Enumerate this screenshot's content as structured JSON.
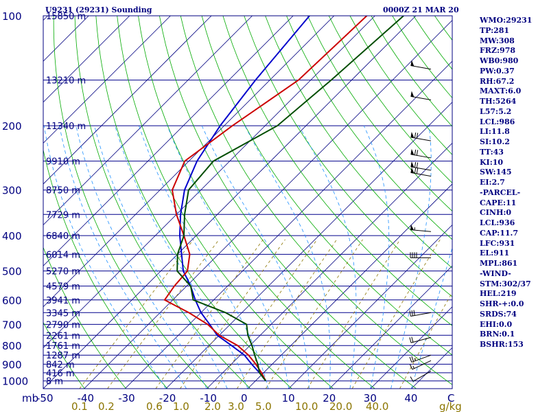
{
  "header": {
    "left": "U9231 (29231) Sounding",
    "right": "0000Z 21 MAR 20"
  },
  "indices": [
    "WMO:29231",
    "TP:281",
    "MW:308",
    "FRZ:978",
    "WB0:980",
    "PW:0.37",
    "RH:67.2",
    "MAXT:6.0",
    "TH:5264",
    "L57:5.2",
    "LCL:986",
    "LI:11.8",
    "SI:10.2",
    "TT:43",
    "KI:10",
    "SW:145",
    "EI:2.7",
    "-PARCEL-",
    "CAPE:11",
    "CINH:0",
    "LCL:936",
    "CAP:11.7",
    "LFC:931",
    "EL:911",
    "MPL:861",
    "-WIND-",
    "STM:302/37",
    "HEL:219",
    "SHR-+:0.0",
    "SRDS:74",
    "EHI:0.0",
    "BRN:0.1",
    "BSHR:153"
  ],
  "colors": {
    "frame": "#000080",
    "isobar": "#00008b",
    "isotherm": "#000080",
    "dry_adiabat": "#00aa00",
    "moist_adiabat": "#1e90ff",
    "mixing_ratio": "#8b7500",
    "temperature": "#cc0000",
    "dewpoint": "#004d00",
    "parcel": "#0000cc",
    "text": "#000080",
    "mixing_label": "#8b7500"
  },
  "chart_data": {
    "type": "line",
    "title": "U9231 (29231) Sounding",
    "xlabel": "C",
    "ylabel": "mb",
    "mixing_ratio_unit": "g/kg",
    "xlim": [
      -50,
      50
    ],
    "ylim": [
      1050,
      100
    ],
    "pressure_levels": [
      100,
      200,
      300,
      400,
      500,
      600,
      700,
      800,
      900,
      1000
    ],
    "temperature_ticks": [
      -50,
      -40,
      -30,
      -20,
      -10,
      0,
      10,
      20,
      30,
      40
    ],
    "mixing_ratio_labels": [
      "0.1",
      "0.2",
      "0.6",
      "1.0",
      "2.0",
      "3.0",
      "5.0",
      "10.0",
      "20.0",
      "40.0"
    ],
    "height_labels": [
      {
        "p": 100,
        "h": "15850 m"
      },
      {
        "p": 150,
        "h": "13210 m"
      },
      {
        "p": 200,
        "h": "11340 m"
      },
      {
        "p": 250,
        "h": "9910 m"
      },
      {
        "p": 300,
        "h": "8750 m"
      },
      {
        "p": 350,
        "h": "7729 m"
      },
      {
        "p": 400,
        "h": "6840 m"
      },
      {
        "p": 450,
        "h": "6014 m"
      },
      {
        "p": 500,
        "h": "5270 m"
      },
      {
        "p": 550,
        "h": "4579 m"
      },
      {
        "p": 600,
        "h": "3941 m"
      },
      {
        "p": 650,
        "h": "3345 m"
      },
      {
        "p": 700,
        "h": "2790 m"
      },
      {
        "p": 750,
        "h": "2261 m"
      },
      {
        "p": 800,
        "h": "1761 m"
      },
      {
        "p": 850,
        "h": "1287 m"
      },
      {
        "p": 900,
        "h": "842 m"
      },
      {
        "p": 950,
        "h": "416 m"
      },
      {
        "p": 1000,
        "h": "8 m"
      }
    ],
    "series": [
      {
        "values": [
          [
            1000,
            2.5
          ],
          [
            950,
            -1
          ],
          [
            900,
            -5
          ],
          [
            850,
            -9
          ],
          [
            800,
            -14.5
          ],
          [
            750,
            -20.5
          ],
          [
            700,
            -25
          ],
          [
            650,
            -30
          ],
          [
            600,
            -34.5
          ],
          [
            550,
            -39
          ],
          [
            500,
            -44.5
          ],
          [
            450,
            -49
          ],
          [
            400,
            -54
          ],
          [
            350,
            -59
          ],
          [
            300,
            -64
          ],
          [
            250,
            -68
          ],
          [
            200,
            -71
          ],
          [
            150,
            -73.5
          ],
          [
            100,
            -76
          ]
        ]
      },
      {
        "values": [
          [
            1000,
            2.5
          ],
          [
            950,
            -0.5
          ],
          [
            900,
            -4
          ],
          [
            850,
            -8
          ],
          [
            800,
            -13
          ],
          [
            750,
            -20
          ],
          [
            700,
            -25.5
          ],
          [
            650,
            -33
          ],
          [
            600,
            -42
          ],
          [
            550,
            -43
          ],
          [
            500,
            -43.5
          ],
          [
            450,
            -47
          ],
          [
            400,
            -53
          ],
          [
            350,
            -60
          ],
          [
            300,
            -67
          ],
          [
            250,
            -71
          ],
          [
            200,
            -68
          ],
          [
            150,
            -63
          ],
          [
            100,
            -62
          ]
        ]
      },
      {
        "values": [
          [
            1000,
            2.5
          ],
          [
            950,
            -1
          ],
          [
            900,
            -3.5
          ],
          [
            850,
            -6.5
          ],
          [
            800,
            -9.5
          ],
          [
            750,
            -13
          ],
          [
            700,
            -16
          ],
          [
            650,
            -24
          ],
          [
            600,
            -35
          ],
          [
            550,
            -39
          ],
          [
            500,
            -46
          ],
          [
            450,
            -50
          ],
          [
            400,
            -53
          ],
          [
            350,
            -58
          ],
          [
            300,
            -63
          ],
          [
            250,
            -64
          ],
          [
            200,
            -57
          ],
          [
            150,
            -55
          ],
          [
            100,
            -53
          ]
        ]
      }
    ],
    "wind_barbs": [
      {
        "p": 140,
        "dir": 280,
        "spd": 50
      },
      {
        "p": 170,
        "dir": 280,
        "spd": 50
      },
      {
        "p": 220,
        "dir": 280,
        "spd": 70
      },
      {
        "p": 245,
        "dir": 280,
        "spd": 70
      },
      {
        "p": 265,
        "dir": 280,
        "spd": 70
      },
      {
        "p": 275,
        "dir": 280,
        "spd": 70
      },
      {
        "p": 390,
        "dir": 275,
        "spd": 55
      },
      {
        "p": 460,
        "dir": 270,
        "spd": 40
      },
      {
        "p": 650,
        "dir": 260,
        "spd": 30
      },
      {
        "p": 760,
        "dir": 255,
        "spd": 20
      },
      {
        "p": 850,
        "dir": 250,
        "spd": 25
      },
      {
        "p": 880,
        "dir": 245,
        "spd": 15
      },
      {
        "p": 940,
        "dir": 240,
        "spd": 10
      }
    ],
    "grid": true
  }
}
